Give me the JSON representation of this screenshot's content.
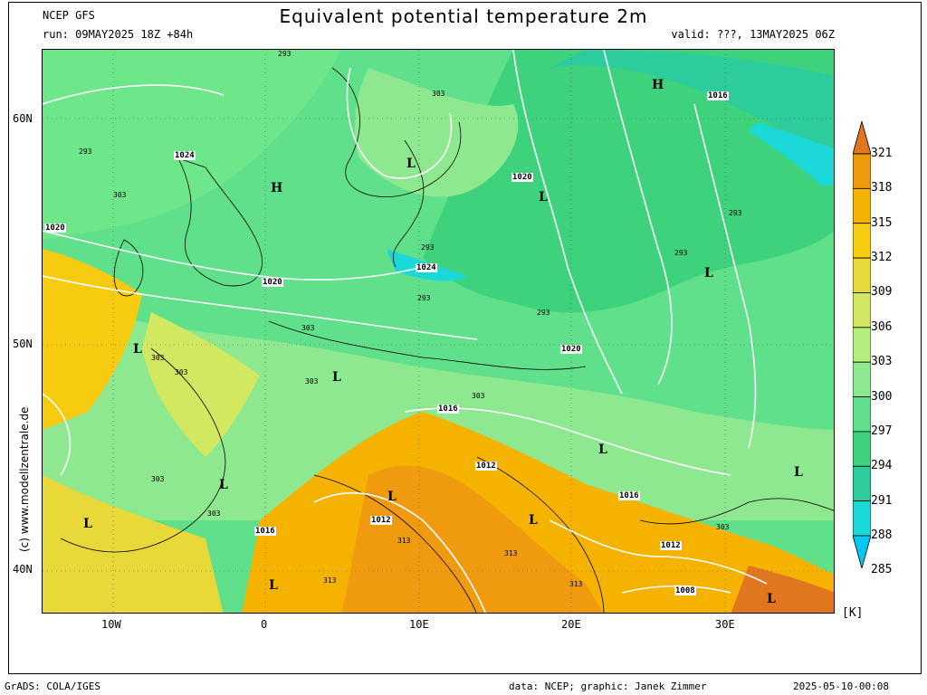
{
  "header": {
    "model": "NCEP GFS",
    "run": "run: 09MAY2025 18Z +84h",
    "title": "Equivalent potential temperature 2m",
    "valid": "valid: ???, 13MAY2025 06Z"
  },
  "axes": {
    "lat_labels": [
      "60N",
      "50N",
      "40N"
    ],
    "lon_labels": [
      "10W",
      "0",
      "10E",
      "20E",
      "30E"
    ]
  },
  "colorbar": {
    "unit": "[K]",
    "levels": [
      "321",
      "318",
      "315",
      "312",
      "309",
      "306",
      "303",
      "300",
      "297",
      "294",
      "291",
      "288",
      "285"
    ],
    "colors": [
      "#e0761e",
      "#f09a10",
      "#f5b300",
      "#f7cc10",
      "#e8d83a",
      "#d2e861",
      "#b4ee7d",
      "#8ee890",
      "#60e08a",
      "#3ed27d",
      "#2ccc9c",
      "#1ad8d8",
      "#00c8f0"
    ]
  },
  "pressure_labels": [
    "1024",
    "1020",
    "1024",
    "1020",
    "1020",
    "1016",
    "1020",
    "1020",
    "1016",
    "1012",
    "1012",
    "1016",
    "1016",
    "1012",
    "1008"
  ],
  "theta_labels": [
    "293",
    "293",
    "303",
    "303",
    "303",
    "303",
    "303",
    "303",
    "303",
    "303",
    "303",
    "293",
    "293",
    "293",
    "293",
    "293",
    "303",
    "313",
    "313",
    "313",
    "313"
  ],
  "centers": [
    "H",
    "H",
    "L",
    "L",
    "L",
    "L",
    "L",
    "L",
    "L",
    "L",
    "L",
    "L",
    "L",
    "L",
    "L"
  ],
  "side_text": "(c) www.modellzentrale.de",
  "footer": {
    "left": "GrADS: COLA/IGES",
    "center": "data: NCEP; graphic: Janek Zimmer",
    "right": "2025-05-10-00:08"
  }
}
